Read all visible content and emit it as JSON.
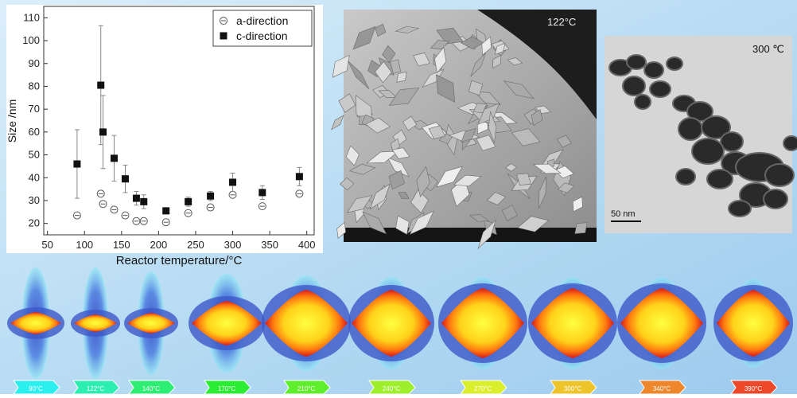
{
  "chart_data": {
    "type": "scatter",
    "x_label": "Reactor temperature/°C",
    "y_label": "Size /nm",
    "xlim": [
      45,
      410
    ],
    "xticks": [
      50,
      100,
      150,
      200,
      250,
      300,
      350,
      400
    ],
    "ylim": [
      15,
      115
    ],
    "yticks": [
      20,
      30,
      40,
      50,
      60,
      70,
      80,
      90,
      100,
      110
    ],
    "legend": "top-right",
    "series": [
      {
        "name": "a-direction",
        "marker": "open-circle",
        "color": "#555555",
        "x": [
          90,
          122,
          125,
          140,
          155,
          170,
          180,
          210,
          240,
          270,
          300,
          340,
          390
        ],
        "values": [
          23.5,
          33,
          28.5,
          26,
          23.5,
          21,
          21,
          20.5,
          24.5,
          27,
          32.5,
          27.5,
          33
        ]
      },
      {
        "name": "c-direction",
        "marker": "filled-square",
        "color": "#111111",
        "x": [
          90,
          122,
          125,
          140,
          155,
          170,
          180,
          210,
          240,
          270,
          300,
          340,
          390
        ],
        "values": [
          46,
          80.5,
          60,
          48.5,
          39.5,
          31,
          29.5,
          25.5,
          29.5,
          32,
          38,
          33.5,
          40.5
        ],
        "errors": [
          15,
          26,
          16,
          10,
          6,
          3,
          3,
          1,
          2,
          2,
          4,
          3,
          4
        ]
      }
    ]
  },
  "panels": {
    "sem_label": "122°C",
    "tem_label": "300 ℃",
    "scale_bar": "50 nm",
    "shape_labels": [
      "90°C",
      "122°C",
      "140°C",
      "170°C",
      "210°C",
      "240°C",
      "270°C",
      "300°C",
      "340°C",
      "390°C"
    ]
  }
}
